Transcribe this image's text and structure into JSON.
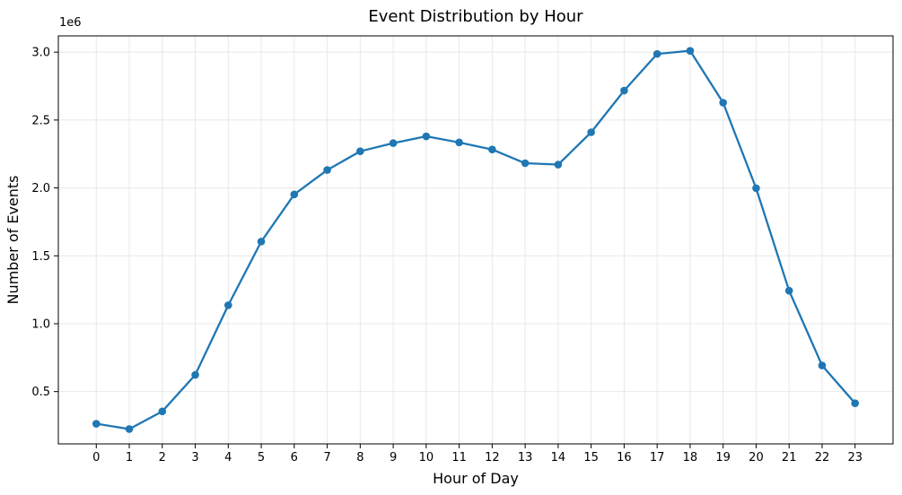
{
  "chart_data": {
    "type": "line",
    "title": "Event Distribution by Hour",
    "xlabel": "Hour of Day",
    "ylabel": "Number of Events",
    "y_offset_label": "1e6",
    "x": [
      0,
      1,
      2,
      3,
      4,
      5,
      6,
      7,
      8,
      9,
      10,
      11,
      12,
      13,
      14,
      15,
      16,
      17,
      18,
      19,
      20,
      21,
      22,
      23
    ],
    "series": [
      {
        "values": [
          263000,
          224000,
          354000,
          623000,
          1136000,
          1605000,
          1952000,
          2132000,
          2270000,
          2330000,
          2380000,
          2335000,
          2283000,
          2182000,
          2172000,
          2410000,
          2717000,
          2987000,
          3010000,
          2628000,
          1998000,
          1243000,
          692000,
          414000
        ],
        "color": "#1f77b4"
      }
    ],
    "xticks": [
      "0",
      "1",
      "2",
      "3",
      "4",
      "5",
      "6",
      "7",
      "8",
      "9",
      "10",
      "11",
      "12",
      "13",
      "14",
      "15",
      "16",
      "17",
      "18",
      "19",
      "20",
      "21",
      "22",
      "23"
    ],
    "yticks": [
      {
        "value": 500000,
        "label": "0.5"
      },
      {
        "value": 1000000,
        "label": "1.0"
      },
      {
        "value": 1500000,
        "label": "1.5"
      },
      {
        "value": 2000000,
        "label": "2.0"
      },
      {
        "value": 2500000,
        "label": "2.5"
      },
      {
        "value": 3000000,
        "label": "3.0"
      }
    ],
    "xlim": [
      -1.15,
      24.15
    ],
    "ylim": [
      114700,
      3120000
    ],
    "grid": true,
    "grid_color": "#e8e8e8",
    "axis_color": "#000000"
  }
}
